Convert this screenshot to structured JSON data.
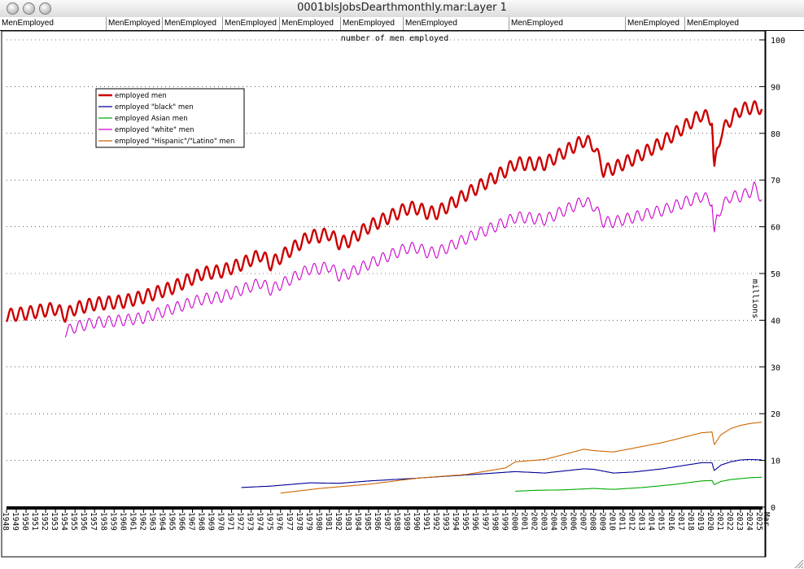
{
  "window": {
    "title": "0001blsJobsDearthmonthly.mar:Layer 1"
  },
  "header_tabs": [
    "MenEmployed",
    "MenEmployed",
    "MenEmployed",
    "MenEmployed",
    "MenEmployed",
    "MenEmployed",
    "MenEmployed",
    "MenEmployed",
    "MenEmployed",
    "MenEmployed"
  ],
  "colors": {
    "men": "#cc0000",
    "black": "#000099",
    "asian": "#00aa00",
    "white": "#cc00cc",
    "hispanic": "#cc6600",
    "axis": "#000000"
  },
  "chart_data": {
    "type": "line",
    "title": "number of men employed",
    "xlabel": "",
    "ylabel": "millions",
    "ylim": [
      0,
      100
    ],
    "xlim": [
      1948,
      2025.25
    ],
    "yticks": [
      0,
      10,
      20,
      30,
      40,
      50,
      60,
      70,
      80,
      90,
      100
    ],
    "xticks": [
      "1948",
      "1949",
      "1950",
      "1951",
      "1952",
      "1953",
      "1954",
      "1955",
      "1956",
      "1957",
      "1958",
      "1959",
      "1960",
      "1961",
      "1962",
      "1963",
      "1964",
      "1965",
      "1966",
      "1967",
      "1968",
      "1969",
      "1970",
      "1971",
      "1972",
      "1973",
      "1974",
      "1975",
      "1976",
      "1977",
      "1978",
      "1979",
      "1980",
      "1981",
      "1982",
      "1983",
      "1984",
      "1985",
      "1986",
      "1987",
      "1988",
      "1989",
      "1990",
      "1991",
      "1992",
      "1993",
      "1994",
      "1995",
      "1996",
      "1997",
      "1998",
      "1999",
      "2000",
      "2001",
      "2002",
      "2003",
      "2004",
      "2005",
      "2006",
      "2007",
      "2008",
      "2009",
      "2010",
      "2011",
      "2012",
      "2013",
      "2014",
      "2015",
      "2016",
      "2017",
      "2018",
      "2019",
      "2020",
      "2021",
      "2022",
      "2023",
      "2024",
      "2025"
    ],
    "xtick_extra": "Mar",
    "legend_position": "top-left",
    "seasonal_amplitude_note": "",
    "series": [
      {
        "name": "employed men",
        "key": "men",
        "seasonal": 1.4,
        "x": [
          1948,
          1950,
          1953,
          1954,
          1955,
          1957,
          1960,
          1962,
          1965,
          1968,
          1970,
          1972,
          1974,
          1975,
          1979,
          1980,
          1981,
          1982,
          1983,
          1985,
          1989,
          1990,
          1991,
          1992,
          1995,
          1999,
          2000,
          2001,
          2003,
          2007,
          2008,
          2009,
          2010,
          2012,
          2015,
          2019,
          2020.1,
          2020.3,
          2020.6,
          2021,
          2022,
          2023,
          2024,
          2025.2
        ],
        "y": [
          41,
          41.5,
          42.5,
          41,
          42.5,
          43.5,
          44,
          45,
          47,
          50,
          50.5,
          52,
          54,
          52,
          58,
          58,
          58.5,
          56.5,
          57,
          60,
          64,
          64,
          63,
          63,
          67,
          72,
          73.5,
          73.5,
          73.5,
          78.5,
          77.5,
          72,
          72.5,
          74.5,
          78,
          84,
          83,
          71.5,
          76,
          80,
          83,
          85,
          85.5,
          85.5
        ]
      },
      {
        "name": "employed \"black\" men",
        "key": "black",
        "seasonal": 0,
        "x": [
          1972,
          1975,
          1979,
          1982,
          1985,
          1990,
          1995,
          2000,
          2003,
          2007,
          2008,
          2010,
          2012,
          2015,
          2019,
          2020.1,
          2020.3,
          2021,
          2022,
          2023,
          2024,
          2025.2
        ],
        "y": [
          4.2,
          4.5,
          5.2,
          5.1,
          5.6,
          6.2,
          6.9,
          7.6,
          7.3,
          8.2,
          8.1,
          7.3,
          7.5,
          8.2,
          9.5,
          9.5,
          7.8,
          9,
          9.7,
          10.1,
          10.2,
          10.1
        ]
      },
      {
        "name": "employed Asian men",
        "key": "asian",
        "seasonal": 0,
        "x": [
          2000,
          2002,
          2005,
          2008,
          2010,
          2013,
          2016,
          2019,
          2020.1,
          2020.3,
          2021,
          2022,
          2023,
          2024,
          2025.2
        ],
        "y": [
          3.4,
          3.6,
          3.7,
          4.0,
          3.8,
          4.2,
          4.8,
          5.6,
          5.7,
          4.8,
          5.5,
          5.9,
          6.1,
          6.3,
          6.4
        ]
      },
      {
        "name": "employed \"white\" men",
        "key": "white",
        "seasonal": 1.2,
        "x": [
          1954,
          1955,
          1957,
          1960,
          1962,
          1965,
          1968,
          1970,
          1972,
          1974,
          1975,
          1979,
          1980,
          1981,
          1982,
          1983,
          1985,
          1989,
          1990,
          1991,
          1992,
          1995,
          1999,
          2000,
          2001,
          2003,
          2007,
          2008,
          2009,
          2010,
          2012,
          2015,
          2019,
          2020.1,
          2020.3,
          2020.6,
          2021,
          2022,
          2023,
          2024,
          2024.4,
          2025.2
        ],
        "y": [
          37.5,
          38.5,
          39.5,
          40,
          40.5,
          42.5,
          44.5,
          45,
          46.5,
          48,
          46.5,
          51,
          51,
          51.5,
          49.5,
          50,
          52,
          55.5,
          55.5,
          54.5,
          54.5,
          57.5,
          61,
          62,
          62,
          61.5,
          65.5,
          64.5,
          61,
          61,
          62,
          63.5,
          66.5,
          65.5,
          57.5,
          62,
          64,
          66.5,
          66.5,
          67.5,
          68.5,
          66
        ]
      },
      {
        "name": "employed \"Hispanic\"/\"Latino\" men",
        "key": "hispanic",
        "seasonal": 0,
        "x": [
          1976,
          1980,
          1985,
          1990,
          1995,
          1999,
          2000,
          2003,
          2007,
          2008,
          2010,
          2015,
          2019,
          2020.1,
          2020.3,
          2021,
          2022,
          2023,
          2024,
          2025.2
        ],
        "y": [
          3,
          4,
          4.9,
          6.2,
          7,
          8.4,
          9.7,
          10.2,
          12.4,
          12.1,
          11.8,
          13.8,
          15.9,
          16.1,
          13.3,
          15.5,
          16.8,
          17.5,
          17.9,
          18.2
        ]
      }
    ]
  }
}
